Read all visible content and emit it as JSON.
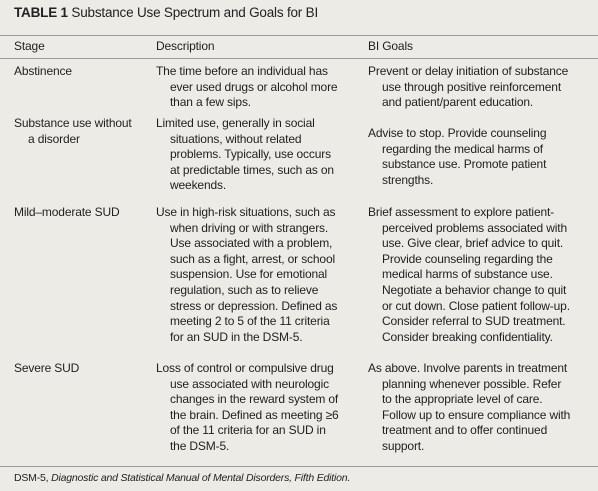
{
  "table": {
    "label": "TABLE 1",
    "title": "Substance Use Spectrum and Goals for BI",
    "headers": {
      "stage": "Stage",
      "description": "Description",
      "goals": "BI Goals"
    },
    "rows": [
      {
        "stage": [
          "Abstinence"
        ],
        "description": [
          "The time before an individual has",
          "ever used drugs or alcohol more",
          "than a few sips."
        ],
        "goals": [
          "Prevent or delay initiation of substance",
          "use through positive reinforcement",
          "and patient/parent education."
        ]
      },
      {
        "stage": [
          "Substance use without",
          "a disorder"
        ],
        "description": [
          "Limited use, generally in social",
          "situations, without related",
          "problems. Typically, use occurs",
          "at predictable times, such as on",
          "weekends."
        ],
        "goals": [
          "Advise to stop. Provide counseling",
          "regarding the medical harms of",
          "substance use. Promote patient",
          "strengths."
        ]
      },
      {
        "stage": [
          "Mild–moderate SUD"
        ],
        "description": [
          "Use in high-risk situations, such as",
          "when driving or with strangers.",
          "Use associated with a problem,",
          "such as a fight, arrest, or school",
          "suspension. Use for emotional",
          "regulation, such as to relieve",
          "stress or depression. Defined as",
          "meeting 2 to 5 of the 11 criteria",
          "for an SUD in the DSM-5."
        ],
        "goals": [
          "Brief assessment to explore patient-",
          "perceived problems associated with",
          "use. Give clear, brief advice to quit.",
          "Provide counseling regarding the",
          "medical harms of substance use.",
          "Negotiate a behavior change to quit",
          "or cut down. Close patient follow-up.",
          "Consider referral to SUD treatment.",
          "Consider breaking confidentiality."
        ]
      },
      {
        "stage": [
          "Severe SUD"
        ],
        "description": [
          "Loss of control or compulsive drug",
          "use associated with neurologic",
          "changes in the reward system of",
          "the brain. Defined as meeting ≥6",
          "of the 11 criteria for an SUD in",
          "the DSM-5."
        ],
        "goals": [
          "As above. Involve parents in treatment",
          "planning whenever possible. Refer",
          "to the appropriate level of care.",
          "Follow up to ensure compliance with",
          "treatment and to offer continued",
          "support."
        ]
      }
    ],
    "footnote": {
      "abbr": "DSM-5,",
      "expansion": "Diagnostic and Statistical Manual of Mental Disorders, Fifth Edition."
    }
  }
}
